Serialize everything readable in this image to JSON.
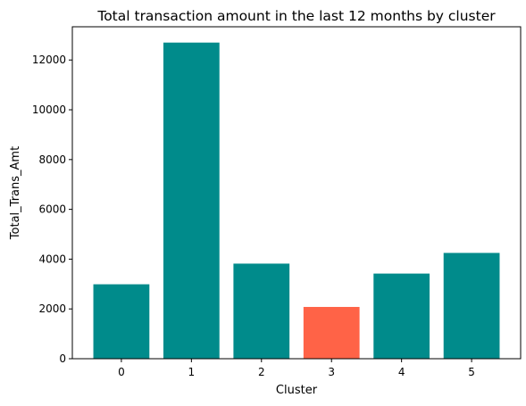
{
  "chart_data": {
    "type": "bar",
    "title": "Total transaction amount in the last 12 months by cluster",
    "xlabel": "Cluster",
    "ylabel": "Total_Trans_Amt",
    "categories": [
      "0",
      "1",
      "2",
      "3",
      "4",
      "5"
    ],
    "values": [
      2990,
      12700,
      3820,
      2080,
      3420,
      4250
    ],
    "colors": [
      "#008b8b",
      "#008b8b",
      "#008b8b",
      "#ff6347",
      "#008b8b",
      "#008b8b"
    ],
    "ylim": [
      0,
      13335
    ],
    "yticks": [
      0,
      2000,
      4000,
      6000,
      8000,
      10000,
      12000
    ],
    "ytick_labels": [
      "0",
      "2000",
      "4000",
      "6000",
      "8000",
      "10000",
      "12000"
    ],
    "grid": false,
    "legend": "none"
  }
}
